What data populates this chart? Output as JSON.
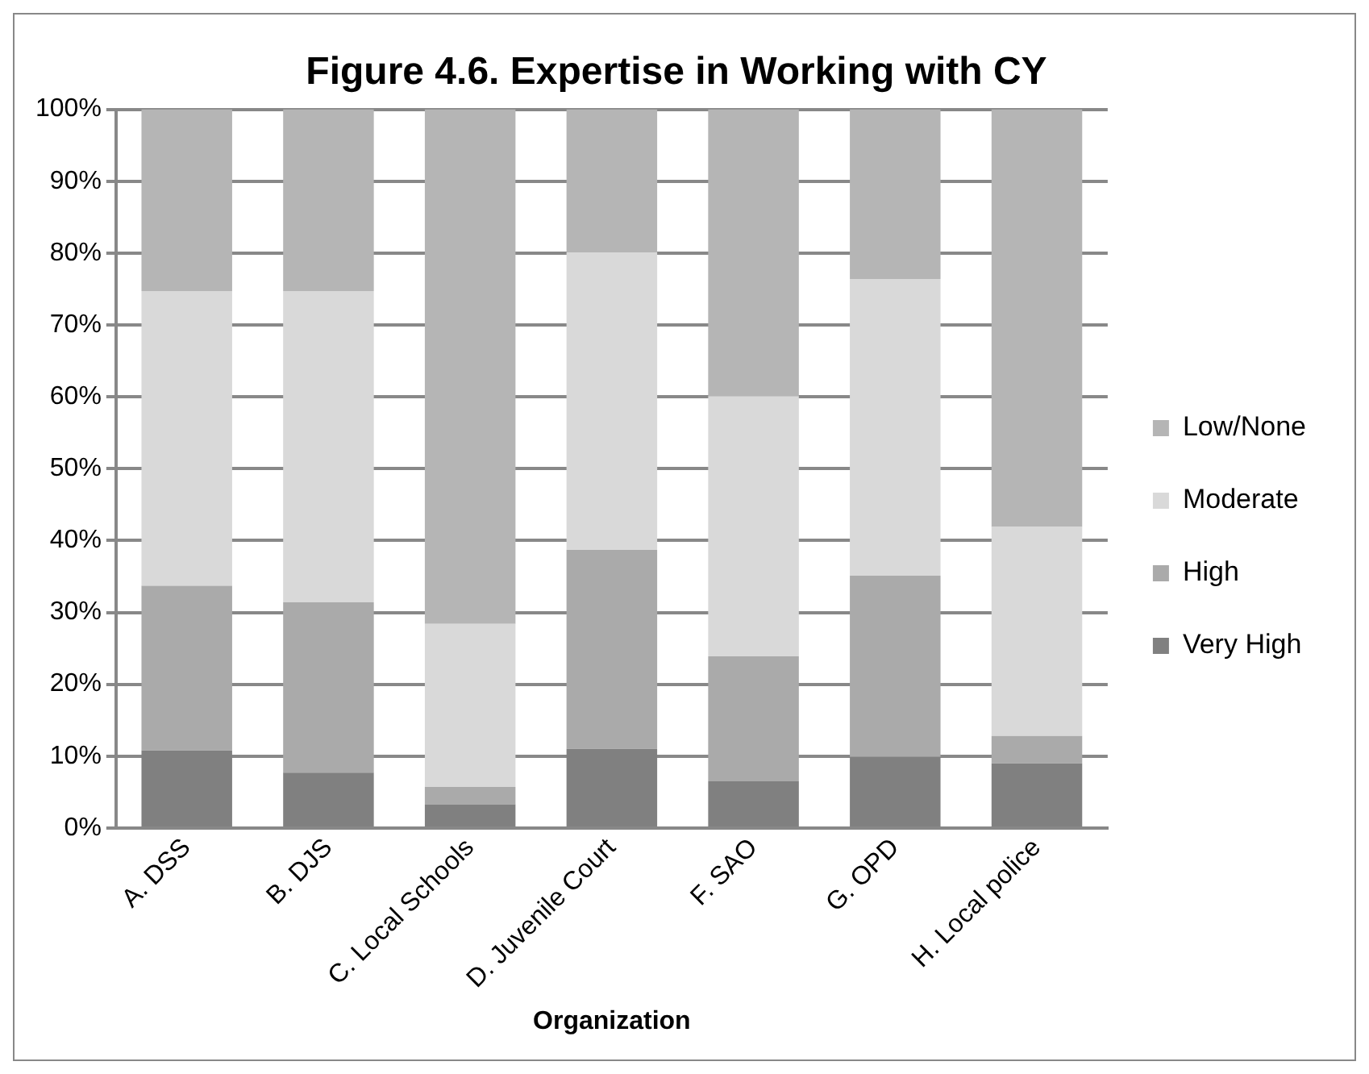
{
  "chart_data": {
    "type": "bar",
    "title": "Figure 4.6. Expertise in Working with CY",
    "xlabel": "Organization",
    "categories": [
      "A. DSS",
      "B. DJS",
      "C. Local Schools",
      "D. Juvenile Court",
      "F. SAO",
      "G. OPD",
      "H. Local police"
    ],
    "stacked": true,
    "legend": "right",
    "grid": "y",
    "ylim": [
      0,
      100
    ],
    "yticks": [
      {
        "value": 0,
        "label": "0%"
      },
      {
        "value": 10,
        "label": "10%"
      },
      {
        "value": 20,
        "label": "20%"
      },
      {
        "value": 30,
        "label": "30%"
      },
      {
        "value": 40,
        "label": "40%"
      },
      {
        "value": 50,
        "label": "50%"
      },
      {
        "value": 60,
        "label": "60%"
      },
      {
        "value": 70,
        "label": "70%"
      },
      {
        "value": 80,
        "label": "80%"
      },
      {
        "value": 90,
        "label": "90%"
      },
      {
        "value": 100,
        "label": "100%"
      }
    ],
    "series": [
      {
        "name": "Very High",
        "color": "#808080",
        "values": [
          10.8,
          7.7,
          3.3,
          11.0,
          6.5,
          9.9,
          9.0
        ]
      },
      {
        "name": "High",
        "color": "#aaaaaa",
        "values": [
          22.9,
          23.7,
          2.4,
          27.7,
          17.4,
          25.2,
          3.8
        ]
      },
      {
        "name": "Moderate",
        "color": "#d9d9d9",
        "values": [
          41.0,
          43.3,
          22.7,
          41.4,
          36.2,
          41.3,
          29.1
        ]
      },
      {
        "name": "Low/None",
        "color": "#b5b5b5",
        "values": [
          25.3,
          25.3,
          71.6,
          19.9,
          39.9,
          23.6,
          58.1
        ]
      }
    ]
  }
}
